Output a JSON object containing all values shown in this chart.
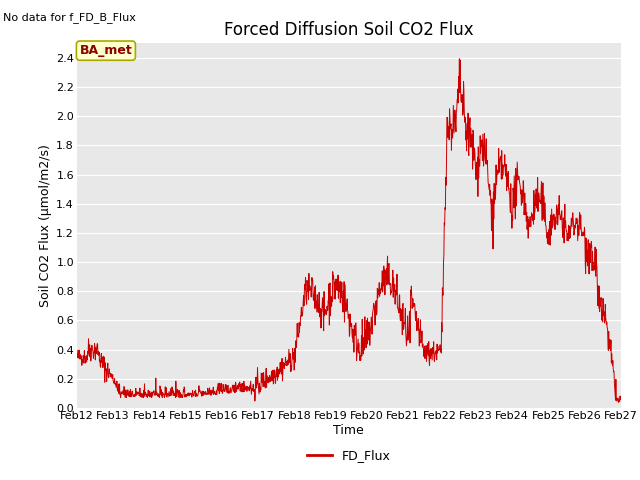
{
  "title": "Forced Diffusion Soil CO2 Flux",
  "no_data_label": "No data for f_FD_B_Flux",
  "xlabel": "Time",
  "ylabel": "Soil CO2 Flux (μmol/m2/s)",
  "legend_label": "FD_Flux",
  "ylim": [
    0.0,
    2.5
  ],
  "bg_color": "#e8e8e8",
  "line_color": "#cc0000",
  "box_facecolor": "#ffffcc",
  "box_edgecolor": "#aaa800",
  "box_label": "BA_met",
  "xtick_labels": [
    "Feb 12",
    "Feb 13",
    "Feb 14",
    "Feb 15",
    "Feb 16",
    "Feb 17",
    "Feb 18",
    "Feb 19",
    "Feb 20",
    "Feb 21",
    "Feb 22",
    "Feb 23",
    "Feb 24",
    "Feb 25",
    "Feb 26",
    "Feb 27"
  ],
  "ytick_values": [
    0.0,
    0.2,
    0.4,
    0.6,
    0.8,
    1.0,
    1.2,
    1.4,
    1.6,
    1.8,
    2.0,
    2.2,
    2.4
  ],
  "n_days": 15,
  "pts_per_day": 96,
  "seed": 42,
  "title_fontsize": 12,
  "axis_label_fontsize": 9,
  "tick_fontsize": 8
}
